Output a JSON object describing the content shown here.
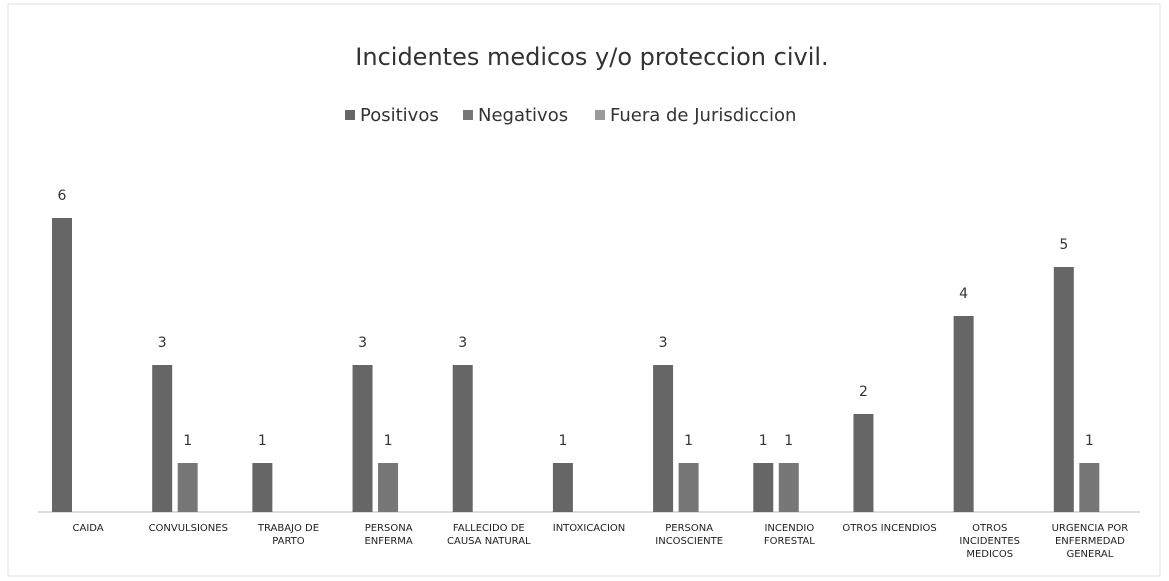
{
  "chart_data": {
    "type": "bar",
    "title": "Incidentes medicos y/o proteccion civil.",
    "categories": [
      "CAIDA",
      "CONVULSIONES",
      "TRABAJO DE PARTO",
      "PERSONA ENFERMA",
      "FALLECIDO DE CAUSA NATURAL",
      "INTOXICACION",
      "PERSONA INCOSCIENTE",
      "INCENDIO FORESTAL",
      "OTROS INCENDIOS",
      "OTROS INCIDENTES MEDICOS",
      "URGENCIA POR ENFERMEDAD GENERAL"
    ],
    "series": [
      {
        "name": "Positivos",
        "color": "#666666",
        "values": [
          6,
          3,
          1,
          3,
          3,
          1,
          3,
          1,
          2,
          4,
          5
        ]
      },
      {
        "name": "Negativos",
        "color": "#777777",
        "values": [
          0,
          1,
          0,
          1,
          0,
          0,
          1,
          1,
          0,
          0,
          1
        ]
      },
      {
        "name": "Fuera de Jurisdiccion",
        "color": "#9a9a9a",
        "values": [
          0,
          0,
          0,
          0,
          0,
          0,
          0,
          0,
          0,
          0,
          0
        ]
      }
    ],
    "ylim": [
      0,
      7
    ],
    "legend": "top"
  }
}
